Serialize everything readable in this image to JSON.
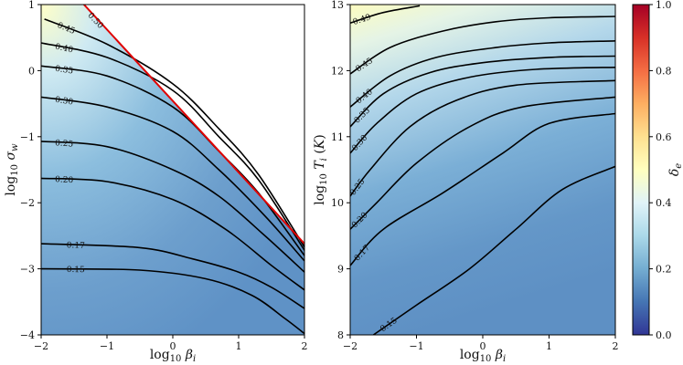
{
  "colors": {
    "cmap_low": "#313695",
    "cmap_mid": "#e0f3f8",
    "cmap_high": "#a50026",
    "critical_line": "#e00000",
    "contour": "#000000"
  },
  "chart_data": [
    {
      "type": "contour",
      "title": "",
      "xlabel": "log10 βi",
      "ylabel": "log10 σw",
      "xlim": [
        -2,
        2
      ],
      "ylim": [
        -4,
        1
      ],
      "xticks": [
        -2,
        -1,
        0,
        1,
        2
      ],
      "yticks": [
        -4,
        -3,
        -2,
        -1,
        0,
        1
      ],
      "xtick_labels": [
        "−2",
        "−1",
        "0",
        "1",
        "2"
      ],
      "ytick_labels": [
        "−4",
        "−3",
        "−2",
        "−1",
        "0",
        "1"
      ],
      "critical_line_label": "0.50",
      "critical_line": [
        [
          -1.35,
          1
        ],
        [
          2,
          -2.62
        ]
      ],
      "contour_levels": [
        {
          "label": "0.15",
          "level": 0.15,
          "points": [
            [
              -2,
              -3.0
            ],
            [
              -0.5,
              -3.02
            ],
            [
              0.5,
              -3.15
            ],
            [
              1.2,
              -3.4
            ],
            [
              1.7,
              -3.75
            ],
            [
              2,
              -3.98
            ]
          ]
        },
        {
          "label": "0.17",
          "level": 0.17,
          "points": [
            [
              -2,
              -2.62
            ],
            [
              -0.5,
              -2.68
            ],
            [
              0.3,
              -2.85
            ],
            [
              1.0,
              -3.05
            ],
            [
              1.5,
              -3.28
            ],
            [
              2,
              -3.6
            ]
          ]
        },
        {
          "label": "0.20",
          "level": 0.2,
          "points": [
            [
              -2,
              -1.63
            ],
            [
              -1.0,
              -1.68
            ],
            [
              0,
              -1.95
            ],
            [
              0.8,
              -2.4
            ],
            [
              1.5,
              -2.95
            ],
            [
              2,
              -3.32
            ]
          ]
        },
        {
          "label": "0.25",
          "level": 0.25,
          "points": [
            [
              -2,
              -1.07
            ],
            [
              -1.0,
              -1.15
            ],
            [
              0,
              -1.5
            ],
            [
              0.7,
              -1.9
            ],
            [
              1.4,
              -2.5
            ],
            [
              2,
              -3.05
            ]
          ]
        },
        {
          "label": "0.30",
          "level": 0.3,
          "points": [
            [
              -2,
              -0.4
            ],
            [
              -1.0,
              -0.55
            ],
            [
              0,
              -0.92
            ],
            [
              0.7,
              -1.5
            ],
            [
              1.4,
              -2.2
            ],
            [
              2,
              -2.88
            ]
          ]
        },
        {
          "label": "0.35",
          "level": 0.35,
          "points": [
            [
              -2,
              0.07
            ],
            [
              -1.0,
              -0.08
            ],
            [
              0,
              -0.55
            ],
            [
              0.7,
              -1.22
            ],
            [
              1.3,
              -1.85
            ],
            [
              2,
              -2.8
            ]
          ]
        },
        {
          "label": "0.40",
          "level": 0.4,
          "points": [
            [
              -2,
              0.42
            ],
            [
              -1.0,
              0.2
            ],
            [
              0,
              -0.3
            ],
            [
              0.7,
              -1.0
            ],
            [
              1.3,
              -1.65
            ],
            [
              2,
              -2.72
            ]
          ]
        },
        {
          "label": "0.45",
          "level": 0.45,
          "points": [
            [
              -1.95,
              0.78
            ],
            [
              -1.0,
              0.4
            ],
            [
              0,
              -0.2
            ],
            [
              0.7,
              -0.88
            ],
            [
              1.3,
              -1.57
            ],
            [
              2,
              -2.67
            ]
          ]
        }
      ]
    },
    {
      "type": "contour",
      "title": "",
      "xlabel": "log10 βi",
      "ylabel": "log10 Ti (K)",
      "xlim": [
        -2,
        2
      ],
      "ylim": [
        8,
        13
      ],
      "xticks": [
        -2,
        -1,
        0,
        1,
        2
      ],
      "yticks": [
        8,
        9,
        10,
        11,
        12,
        13
      ],
      "xtick_labels": [
        "−2",
        "−1",
        "0",
        "1",
        "2"
      ],
      "ytick_labels": [
        "8",
        "9",
        "10",
        "11",
        "12",
        "13"
      ],
      "contour_levels": [
        {
          "label": "0.15",
          "level": 0.15,
          "points": [
            [
              -1.65,
              8.0
            ],
            [
              -1.0,
              8.45
            ],
            [
              -0.2,
              9.0
            ],
            [
              0.5,
              9.6
            ],
            [
              1.2,
              10.2
            ],
            [
              2,
              10.55
            ]
          ]
        },
        {
          "label": "0.17",
          "level": 0.17,
          "points": [
            [
              -2,
              9.05
            ],
            [
              -1.5,
              9.6
            ],
            [
              -0.6,
              10.15
            ],
            [
              0.3,
              10.75
            ],
            [
              1.0,
              11.2
            ],
            [
              2,
              11.35
            ]
          ]
        },
        {
          "label": "0.20",
          "level": 0.2,
          "points": [
            [
              -2,
              9.6
            ],
            [
              -1.6,
              10.0
            ],
            [
              -1.0,
              10.6
            ],
            [
              -0.2,
              11.15
            ],
            [
              0.6,
              11.45
            ],
            [
              2,
              11.6
            ]
          ]
        },
        {
          "label": "0.25",
          "level": 0.25,
          "points": [
            [
              -2,
              10.1
            ],
            [
              -1.7,
              10.5
            ],
            [
              -1.1,
              11.15
            ],
            [
              -0.4,
              11.55
            ],
            [
              0.5,
              11.78
            ],
            [
              2,
              11.85
            ]
          ]
        },
        {
          "label": "0.30",
          "level": 0.3,
          "points": [
            [
              -2,
              10.75
            ],
            [
              -1.6,
              11.2
            ],
            [
              -1.0,
              11.65
            ],
            [
              -0.2,
              11.9
            ],
            [
              0.8,
              12.02
            ],
            [
              2,
              12.05
            ]
          ]
        },
        {
          "label": "0.35",
          "level": 0.35,
          "points": [
            [
              -2,
              11.15
            ],
            [
              -1.5,
              11.65
            ],
            [
              -0.8,
              11.97
            ],
            [
              0,
              12.12
            ],
            [
              1.0,
              12.2
            ],
            [
              2,
              12.22
            ]
          ]
        },
        {
          "label": "0.40",
          "level": 0.4,
          "points": [
            [
              -2,
              11.45
            ],
            [
              -1.4,
              11.92
            ],
            [
              -0.7,
              12.2
            ],
            [
              0.2,
              12.35
            ],
            [
              1.0,
              12.42
            ],
            [
              2,
              12.45
            ]
          ]
        },
        {
          "label": "0.45",
          "level": 0.45,
          "points": [
            [
              -2,
              11.95
            ],
            [
              -1.4,
              12.35
            ],
            [
              -0.6,
              12.6
            ],
            [
              0.2,
              12.74
            ],
            [
              1.0,
              12.8
            ],
            [
              2,
              12.82
            ]
          ]
        },
        {
          "label": "0.49",
          "level": 0.49,
          "points": [
            [
              -2,
              12.72
            ],
            [
              -1.5,
              12.88
            ],
            [
              -0.95,
              12.98
            ]
          ]
        }
      ]
    }
  ],
  "colorbar": {
    "label": "δe",
    "range": [
      0.0,
      1.0
    ],
    "ticks": [
      0.0,
      0.2,
      0.4,
      0.6,
      0.8,
      1.0
    ],
    "tick_labels": [
      "0.0",
      "0.2",
      "0.4",
      "0.6",
      "0.8",
      "1.0"
    ]
  }
}
